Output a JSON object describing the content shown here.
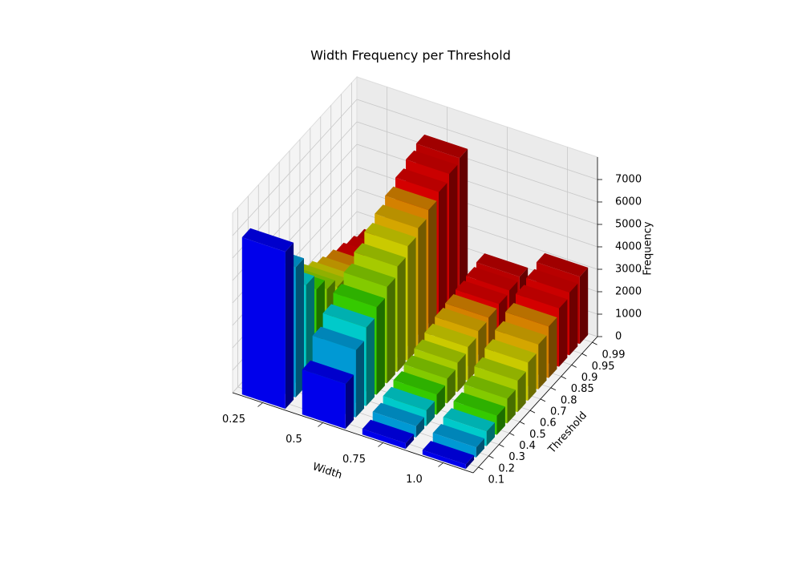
{
  "chart_data": {
    "type": "bar3d",
    "title": "Width Frequency per Threshold",
    "x_label": "Width",
    "y_label": "Threshold",
    "z_label": "Frequency",
    "x_categories": [
      "0.25",
      "0.5",
      "0.75",
      "1.0"
    ],
    "y_categories": [
      "0.1",
      "0.2",
      "0.3",
      "0.4",
      "0.5",
      "0.6",
      "0.7",
      "0.8",
      "0.85",
      "0.9",
      "0.95",
      "0.99"
    ],
    "colors": [
      "#0000ff",
      "#00a6e6",
      "#00dcdc",
      "#3adc00",
      "#8edc00",
      "#b4dc00",
      "#dcdc00",
      "#e6b400",
      "#e68c00",
      "#e60000",
      "#dc0000",
      "#c80000"
    ],
    "values": [
      [
        7000,
        2000,
        250,
        200
      ],
      [
        5800,
        3000,
        500,
        450
      ],
      [
        4500,
        3500,
        700,
        650
      ],
      [
        3800,
        3900,
        900,
        850
      ],
      [
        3300,
        4300,
        1100,
        1100
      ],
      [
        2900,
        4700,
        1300,
        1400
      ],
      [
        2500,
        5100,
        1500,
        1700
      ],
      [
        2200,
        5400,
        1700,
        2000
      ],
      [
        2000,
        5700,
        1800,
        2300
      ],
      [
        1800,
        6000,
        1900,
        2600
      ],
      [
        1600,
        6300,
        2000,
        2800
      ],
      [
        1400,
        6500,
        2100,
        3000
      ]
    ],
    "zlim": [
      0,
      8000
    ],
    "zticks": [
      0,
      1000,
      2000,
      3000,
      4000,
      5000,
      6000,
      7000
    ],
    "grid": true
  }
}
